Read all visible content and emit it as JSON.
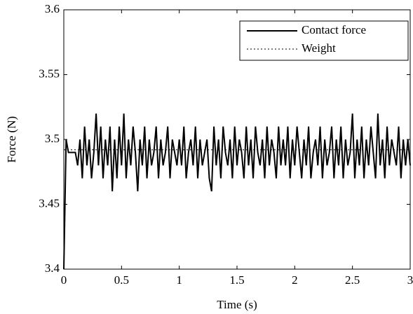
{
  "chart_data": {
    "type": "line",
    "xlabel": "Time (s)",
    "ylabel": "Force (N)",
    "xlim": [
      0,
      3
    ],
    "ylim": [
      3.4,
      3.6
    ],
    "xticks": [
      0,
      0.5,
      1,
      1.5,
      2,
      2.5,
      3
    ],
    "yticks": [
      3.4,
      3.45,
      3.5,
      3.55,
      3.6
    ],
    "legend": "upper right",
    "series": [
      {
        "name": "Contact force",
        "color": "#000000",
        "style": "solid",
        "x": [
          0,
          0.02,
          0.04,
          0.06,
          0.08,
          0.1,
          0.12,
          0.14,
          0.16,
          0.18,
          0.2,
          0.22,
          0.24,
          0.26,
          0.28,
          0.3,
          0.32,
          0.34,
          0.36,
          0.38,
          0.4,
          0.42,
          0.44,
          0.46,
          0.48,
          0.5,
          0.52,
          0.54,
          0.56,
          0.58,
          0.6,
          0.62,
          0.64,
          0.66,
          0.68,
          0.7,
          0.72,
          0.74,
          0.76,
          0.78,
          0.8,
          0.82,
          0.84,
          0.86,
          0.88,
          0.9,
          0.92,
          0.94,
          0.96,
          0.98,
          1,
          1.02,
          1.04,
          1.06,
          1.08,
          1.1,
          1.12,
          1.14,
          1.16,
          1.18,
          1.2,
          1.22,
          1.24,
          1.26,
          1.28,
          1.3,
          1.32,
          1.34,
          1.36,
          1.38,
          1.4,
          1.42,
          1.44,
          1.46,
          1.48,
          1.5,
          1.52,
          1.54,
          1.56,
          1.58,
          1.6,
          1.62,
          1.64,
          1.66,
          1.68,
          1.7,
          1.72,
          1.74,
          1.76,
          1.78,
          1.8,
          1.82,
          1.84,
          1.86,
          1.88,
          1.9,
          1.92,
          1.94,
          1.96,
          1.98,
          2,
          2.02,
          2.04,
          2.06,
          2.08,
          2.1,
          2.12,
          2.14,
          2.16,
          2.18,
          2.2,
          2.22,
          2.24,
          2.26,
          2.28,
          2.3,
          2.32,
          2.34,
          2.36,
          2.38,
          2.4,
          2.42,
          2.44,
          2.46,
          2.48,
          2.5,
          2.52,
          2.54,
          2.56,
          2.58,
          2.6,
          2.62,
          2.64,
          2.66,
          2.68,
          2.7,
          2.72,
          2.74,
          2.76,
          2.78,
          2.8,
          2.82,
          2.84,
          2.86,
          2.88,
          2.9,
          2.92,
          2.94,
          2.96,
          2.98,
          3
        ],
        "values": [
          3.4,
          3.5,
          3.49,
          3.49,
          3.49,
          3.49,
          3.48,
          3.5,
          3.47,
          3.51,
          3.48,
          3.5,
          3.47,
          3.49,
          3.52,
          3.48,
          3.51,
          3.47,
          3.5,
          3.48,
          3.51,
          3.46,
          3.5,
          3.47,
          3.51,
          3.48,
          3.52,
          3.47,
          3.5,
          3.48,
          3.51,
          3.49,
          3.46,
          3.5,
          3.48,
          3.51,
          3.47,
          3.5,
          3.48,
          3.49,
          3.51,
          3.47,
          3.5,
          3.48,
          3.49,
          3.51,
          3.47,
          3.5,
          3.49,
          3.48,
          3.5,
          3.48,
          3.51,
          3.47,
          3.49,
          3.5,
          3.48,
          3.51,
          3.47,
          3.5,
          3.48,
          3.49,
          3.5,
          3.47,
          3.46,
          3.51,
          3.48,
          3.5,
          3.47,
          3.51,
          3.49,
          3.48,
          3.5,
          3.47,
          3.51,
          3.48,
          3.5,
          3.49,
          3.47,
          3.51,
          3.48,
          3.5,
          3.47,
          3.51,
          3.49,
          3.48,
          3.5,
          3.47,
          3.51,
          3.48,
          3.5,
          3.49,
          3.47,
          3.51,
          3.48,
          3.5,
          3.48,
          3.51,
          3.47,
          3.5,
          3.48,
          3.51,
          3.49,
          3.47,
          3.5,
          3.48,
          3.51,
          3.47,
          3.49,
          3.5,
          3.48,
          3.51,
          3.47,
          3.5,
          3.48,
          3.49,
          3.51,
          3.47,
          3.5,
          3.48,
          3.51,
          3.47,
          3.5,
          3.48,
          3.49,
          3.52,
          3.47,
          3.5,
          3.48,
          3.51,
          3.47,
          3.5,
          3.48,
          3.51,
          3.49,
          3.47,
          3.52,
          3.48,
          3.5,
          3.47,
          3.51,
          3.48,
          3.5,
          3.49,
          3.48,
          3.51,
          3.47,
          3.5,
          3.48,
          3.5,
          3.48
        ]
      },
      {
        "name": "Weight",
        "color": "#000000",
        "style": "dotted",
        "x": [
          0,
          3
        ],
        "values": [
          3.492,
          3.492
        ]
      }
    ]
  }
}
